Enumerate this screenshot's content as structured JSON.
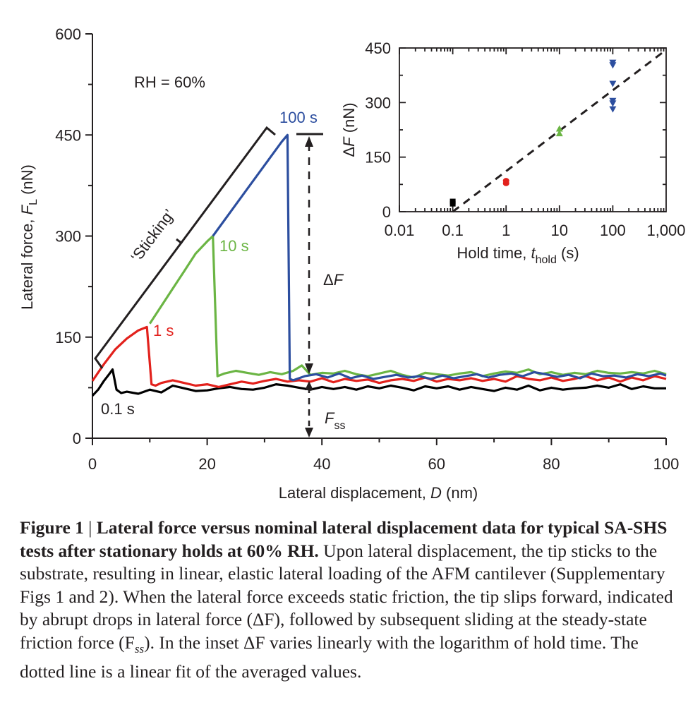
{
  "chart_data": [
    {
      "type": "line",
      "title": "",
      "xlabel": "Lateral displacement, D (nm)",
      "ylabel": "Lateral force, F_L (nN)",
      "xlim": [
        0,
        100
      ],
      "ylim": [
        0,
        600
      ],
      "x_ticks": [
        "0",
        "20",
        "40",
        "60",
        "80",
        "100"
      ],
      "y_ticks": [
        "0",
        "150",
        "300",
        "450",
        "600"
      ],
      "grid": false,
      "legend": "none (series labelled directly on curves)",
      "annotations": {
        "rh": "RH = 60%",
        "sticking": "‘Sticking’",
        "delta_f": "ΔF",
        "fss_main": "F",
        "fss_sub": "ss"
      },
      "series": [
        {
          "name": "0.1 s",
          "color": "#000000",
          "peak_x": 3.5,
          "peak_y": 102,
          "x": [
            0,
            1,
            2,
            3,
            3.5,
            4.2,
            5,
            6,
            8,
            10,
            12,
            14,
            16,
            18,
            20,
            22,
            24,
            26,
            28,
            30,
            32,
            34,
            36,
            38,
            40,
            42,
            44,
            46,
            48,
            50,
            52,
            54,
            56,
            58,
            60,
            62,
            64,
            66,
            68,
            70,
            72,
            74,
            76,
            78,
            80,
            82,
            84,
            86,
            88,
            90,
            92,
            94,
            96,
            98,
            100
          ],
          "y": [
            63,
            72,
            85,
            96,
            102,
            72,
            67,
            69,
            66,
            72,
            68,
            78,
            74,
            70,
            71,
            74,
            76,
            73,
            72,
            75,
            80,
            78,
            75,
            72,
            76,
            73,
            76,
            72,
            77,
            74,
            78,
            75,
            71,
            77,
            74,
            77,
            72,
            76,
            73,
            70,
            75,
            72,
            78,
            71,
            75,
            72,
            74,
            75,
            78,
            75,
            80,
            73,
            77,
            74,
            74
          ]
        },
        {
          "name": "1 s",
          "color": "#e2211c",
          "peak_x": 9.5,
          "peak_y": 165,
          "x": [
            0,
            2,
            4,
            6,
            8,
            9.5,
            10.3,
            11,
            12,
            14,
            16,
            18,
            20,
            22,
            24,
            26,
            28,
            30,
            32,
            34,
            36,
            38,
            40,
            42,
            44,
            46,
            48,
            50,
            52,
            54,
            56,
            58,
            60,
            62,
            64,
            66,
            68,
            70,
            72,
            74,
            76,
            78,
            80,
            82,
            84,
            86,
            88,
            90,
            92,
            94,
            96,
            98,
            100
          ],
          "y": [
            85,
            110,
            132,
            148,
            160,
            165,
            80,
            78,
            82,
            86,
            82,
            78,
            80,
            76,
            80,
            84,
            81,
            85,
            88,
            84,
            86,
            84,
            89,
            83,
            88,
            85,
            87,
            82,
            86,
            88,
            85,
            90,
            84,
            88,
            86,
            89,
            85,
            88,
            84,
            92,
            88,
            86,
            90,
            85,
            88,
            92,
            86,
            90,
            84,
            90,
            86,
            92,
            88
          ]
        },
        {
          "name": "10 s",
          "color": "#6bb544",
          "peak_x": 21,
          "peak_y": 300,
          "x": [
            10,
            12,
            14,
            16,
            18,
            20,
            21,
            21.8,
            23,
            25,
            27,
            29,
            31,
            33,
            35,
            36.5,
            38,
            40,
            42,
            44,
            46,
            48,
            50,
            52,
            54,
            56,
            58,
            60,
            62,
            64,
            66,
            68,
            70,
            72,
            74,
            76,
            78,
            80,
            82,
            84,
            86,
            88,
            90,
            92,
            94,
            96,
            98,
            100
          ],
          "y": [
            170,
            196,
            222,
            248,
            274,
            292,
            300,
            92,
            96,
            100,
            97,
            94,
            98,
            95,
            100,
            108,
            94,
            97,
            96,
            100,
            95,
            92,
            96,
            100,
            94,
            90,
            97,
            95,
            93,
            96,
            98,
            92,
            96,
            99,
            97,
            102,
            95,
            98,
            94,
            97,
            95,
            100,
            97,
            96,
            98,
            96,
            100,
            95
          ]
        },
        {
          "name": "100 s",
          "color": "#2c4e9f",
          "peak_x": 34,
          "peak_y": 450,
          "x": [
            21,
            24,
            27,
            30,
            33,
            34,
            34.4,
            35,
            37,
            39,
            41,
            43,
            45,
            47,
            49,
            51,
            53,
            55,
            57,
            59,
            61,
            63,
            65,
            67,
            69,
            71,
            73,
            75,
            77,
            79,
            81,
            83,
            85,
            87,
            89,
            91,
            93,
            95,
            97,
            99,
            100
          ],
          "y": [
            300,
            335,
            370,
            405,
            440,
            450,
            88,
            86,
            92,
            95,
            90,
            96,
            89,
            93,
            88,
            91,
            94,
            90,
            92,
            88,
            93,
            89,
            92,
            95,
            90,
            94,
            96,
            92,
            98,
            95,
            91,
            94,
            89,
            96,
            92,
            93,
            90,
            95,
            92,
            96,
            93
          ]
        }
      ]
    },
    {
      "type": "scatter",
      "title": "",
      "xlabel": "Hold time, t_hold (s)",
      "ylabel": "ΔF (nN)",
      "x_scale": "log",
      "xlim": [
        0.01,
        1000
      ],
      "ylim": [
        0,
        450
      ],
      "x_ticks": [
        "0.01",
        "0.1",
        "1",
        "10",
        "100",
        "1,000"
      ],
      "y_ticks": [
        "0",
        "150",
        "300",
        "450"
      ],
      "grid": false,
      "legend": "none",
      "series": [
        {
          "color": "#000000",
          "marker": "square",
          "points": [
            [
              0.1,
              22
            ],
            [
              0.1,
              28
            ]
          ]
        },
        {
          "color": "#e2211c",
          "marker": "circle",
          "points": [
            [
              1,
              78
            ],
            [
              1,
              85
            ]
          ]
        },
        {
          "color": "#6bb544",
          "marker": "triangle-up",
          "points": [
            [
              10,
              215
            ],
            [
              10,
              228
            ]
          ]
        },
        {
          "color": "#2c4e9f",
          "marker": "triangle-down",
          "points": [
            [
              100,
              282
            ],
            [
              100,
              298
            ],
            [
              100,
              305
            ],
            [
              100,
              352
            ],
            [
              100,
              403
            ],
            [
              100,
              410
            ]
          ]
        }
      ],
      "fit": {
        "style": "dashed",
        "color": "#231f20",
        "x": [
          0.1,
          1000
        ],
        "y": [
          0,
          445
        ]
      }
    }
  ],
  "labels": {
    "x_main_a": "Lateral displacement, ",
    "x_main_b": "D",
    "x_main_c": " (nm)",
    "y_main_a": "Lateral force, ",
    "y_main_b": "F",
    "y_main_c": "L",
    "y_main_d": " (nN)",
    "x_inset_a": "Hold time, ",
    "x_inset_b": "t",
    "x_inset_c": "hold",
    "x_inset_d": " (s)",
    "y_inset_a": "Δ",
    "y_inset_b": "F",
    "y_inset_c": " (nN)"
  },
  "caption": {
    "bold_prefix": "Figure 1",
    "separator": "|",
    "bold_title": "Lateral force versus nominal lateral displacement data for typical SA-SHS tests after stationary holds at 60% RH.",
    "text": "Upon lateral displacement, the tip sticks to the substrate, resulting in linear, elastic lateral loading of the AFM cantilever (Supplementary Figs 1 and 2). When the lateral force exceeds static friction, the tip slips forward, indicated by abrupt drops in lateral force (ΔF), followed by subsequent sliding at the steady-state friction force (F",
    "text_sub": "ss",
    "text_end": "). In the inset ΔF varies linearly with the logarithm of hold time. The dotted line is a linear fit of the averaged values."
  }
}
